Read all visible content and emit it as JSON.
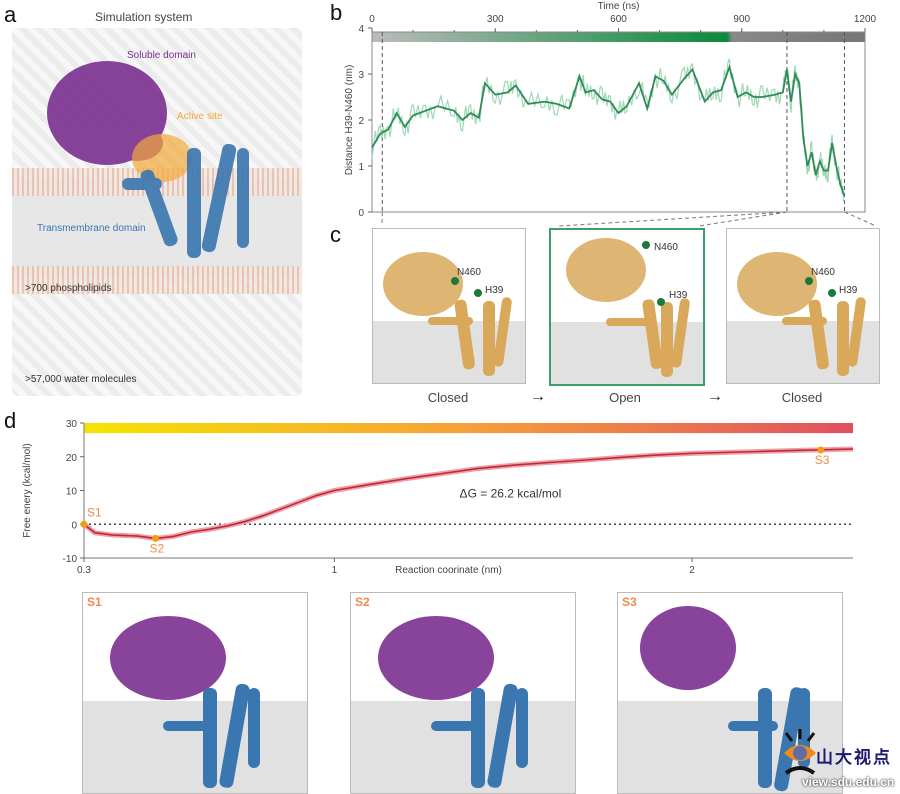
{
  "panels": {
    "a": {
      "label": "a",
      "title": "Simulation system",
      "soluble_domain": "Soluble domain",
      "active_site": "Active site",
      "transmembrane_domain": "Transmembrane domain",
      "phospholipids": ">700 phospholipids",
      "water": ">57,000 water molecules",
      "colors": {
        "soluble": "#7b2f8f",
        "transmembrane": "#3a76b0",
        "active_site": "#f2a93b"
      }
    },
    "b": {
      "label": "b"
    },
    "c": {
      "label": "c",
      "states": [
        {
          "label": "Closed",
          "residue1": "N460",
          "residue2": "H39"
        },
        {
          "label": "Open",
          "residue1": "N460",
          "residue2": "H39"
        },
        {
          "label": "Closed",
          "residue1": "N460",
          "residue2": "H39"
        }
      ],
      "arrow": "→",
      "highlight_color": "#3aa06a"
    },
    "d": {
      "label": "d",
      "snapshots": [
        {
          "tag": "S1"
        },
        {
          "tag": "S2"
        },
        {
          "tag": "S3"
        }
      ]
    }
  },
  "watermark": {
    "name": "山大视点",
    "url": "view.sdu.edu.cn"
  },
  "chart_data": [
    {
      "type": "line",
      "panel": "b",
      "title": "",
      "xlabel": "Time (ns)",
      "ylabel": "Distance H39-N460 (nm)",
      "xlim": [
        0,
        1200
      ],
      "ylim": [
        0,
        4
      ],
      "xticks": [
        0,
        300,
        600,
        900,
        1200
      ],
      "yticks": [
        0,
        1,
        2,
        3,
        4
      ],
      "x_axis_position": "top",
      "grid": false,
      "color_bar": "gray → green → gray (time)",
      "markers_ns": [
        25,
        1010,
        1150
      ],
      "series": [
        {
          "name": "smoothed distance",
          "color": "#2e8b57",
          "x": [
            0,
            20,
            40,
            60,
            80,
            100,
            130,
            160,
            200,
            220,
            240,
            260,
            275,
            300,
            330,
            350,
            380,
            420,
            450,
            480,
            505,
            520,
            540,
            560,
            580,
            600,
            620,
            650,
            670,
            690,
            710,
            730,
            760,
            780,
            810,
            830,
            850,
            870,
            890,
            910,
            930,
            950,
            980,
            1000,
            1010,
            1020,
            1030,
            1040,
            1050,
            1060,
            1070,
            1080,
            1090,
            1100,
            1110,
            1120,
            1130,
            1140,
            1150
          ],
          "y": [
            1.4,
            1.7,
            1.8,
            2.15,
            1.85,
            2.1,
            2.2,
            2.3,
            2.2,
            2.0,
            2.15,
            2.05,
            2.8,
            2.55,
            2.6,
            2.75,
            2.35,
            2.4,
            2.35,
            2.25,
            2.95,
            2.6,
            2.65,
            2.45,
            2.4,
            2.15,
            2.3,
            2.8,
            2.25,
            2.95,
            2.85,
            2.55,
            2.9,
            3.1,
            2.4,
            2.6,
            2.65,
            3.15,
            2.5,
            2.6,
            2.5,
            2.5,
            2.55,
            2.6,
            3.1,
            2.4,
            3.0,
            2.8,
            1.6,
            1.0,
            1.3,
            0.8,
            1.1,
            0.9,
            0.9,
            1.5,
            1.0,
            0.6,
            0.35
          ]
        }
      ]
    },
    {
      "type": "line",
      "panel": "d",
      "xlabel": "Reaction coorinate (nm)",
      "ylabel": "Free enery (kcal/mol)",
      "xlim": [
        0.3,
        2.45
      ],
      "ylim": [
        -10,
        30
      ],
      "xticks": [
        0.3,
        1,
        2
      ],
      "yticks": [
        -10,
        0,
        10,
        20,
        30
      ],
      "grid": false,
      "reference_line": 0,
      "color_bar": "yellow → red (reaction coordinate)",
      "annotation": "ΔG = 26.2 kcal/mol",
      "series": [
        {
          "name": "free energy profile",
          "color": "#c0283a",
          "x": [
            0.3,
            0.33,
            0.38,
            0.45,
            0.5,
            0.55,
            0.6,
            0.65,
            0.7,
            0.75,
            0.8,
            0.85,
            0.9,
            0.95,
            1.0,
            1.1,
            1.2,
            1.3,
            1.4,
            1.5,
            1.6,
            1.7,
            1.8,
            1.9,
            2.0,
            2.1,
            2.2,
            2.3,
            2.45
          ],
          "y": [
            0,
            -2.5,
            -3.2,
            -3.5,
            -4.2,
            -3.6,
            -2.3,
            -1.5,
            -0.5,
            0.8,
            2.5,
            4.5,
            6.5,
            8.5,
            10.0,
            11.8,
            13.5,
            15.0,
            16.5,
            17.5,
            18.3,
            19.0,
            19.8,
            20.5,
            21.0,
            21.3,
            21.6,
            21.9,
            22.3
          ]
        }
      ],
      "points": [
        {
          "label": "S1",
          "x": 0.3,
          "y": 0
        },
        {
          "label": "S2",
          "x": 0.5,
          "y": -4.2
        },
        {
          "label": "S3",
          "x": 2.36,
          "y": 22.0
        }
      ]
    }
  ]
}
